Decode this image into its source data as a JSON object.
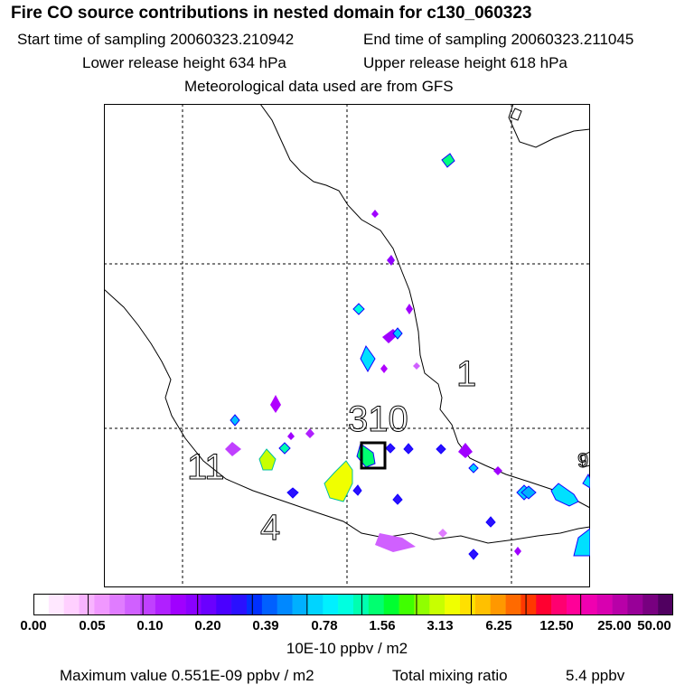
{
  "header": {
    "title": "Fire CO source contributions in nested domain for c130_060323",
    "start_label": "Start time of sampling 20060323.210942",
    "end_label": "End time of sampling 20060323.211045",
    "lower_label": "Lower release height  634 hPa",
    "upper_label": "Upper release height  618 hPa",
    "met_label": "Meteorological data used are from GFS"
  },
  "map": {
    "region_labels": [
      "1",
      "310",
      "11",
      "4",
      "9"
    ],
    "colors": {
      "coast": "#000000",
      "grid": "#000000",
      "box": "#000000"
    }
  },
  "colorbar": {
    "tick_labels": [
      "0.00",
      "0.05",
      "0.10",
      "0.20",
      "0.39",
      "0.78",
      "1.56",
      "3.13",
      "6.25",
      "12.50",
      "25.00",
      "50.00"
    ],
    "colors": [
      "#ffffff",
      "#ffe8ff",
      "#ffd0ff",
      "#f8b4ff",
      "#f098ff",
      "#e07cff",
      "#d060ff",
      "#c040ff",
      "#b020ff",
      "#a000ff",
      "#8a00ff",
      "#6a00ff",
      "#4a00ff",
      "#2a10ff",
      "#0030ff",
      "#0060ff",
      "#0088ff",
      "#00b0ff",
      "#00d4ff",
      "#00f0ff",
      "#00ffe0",
      "#00ffb0",
      "#00ff70",
      "#00ff30",
      "#40ff00",
      "#90ff00",
      "#c8ff00",
      "#f0ff00",
      "#ffe000",
      "#ffc000",
      "#ff9800",
      "#ff6a00",
      "#ff3800",
      "#ff0030",
      "#ff0070",
      "#ff0098",
      "#f000b0",
      "#d800b0",
      "#b800a8",
      "#980098",
      "#780080",
      "#500060"
    ],
    "units": "10E-10 ppbv / m2"
  },
  "footer": {
    "max_value": "Maximum value  0.551E-09 ppbv / m2",
    "total_label": "Total mixing ratio",
    "total_value": "5.4 ppbv"
  }
}
